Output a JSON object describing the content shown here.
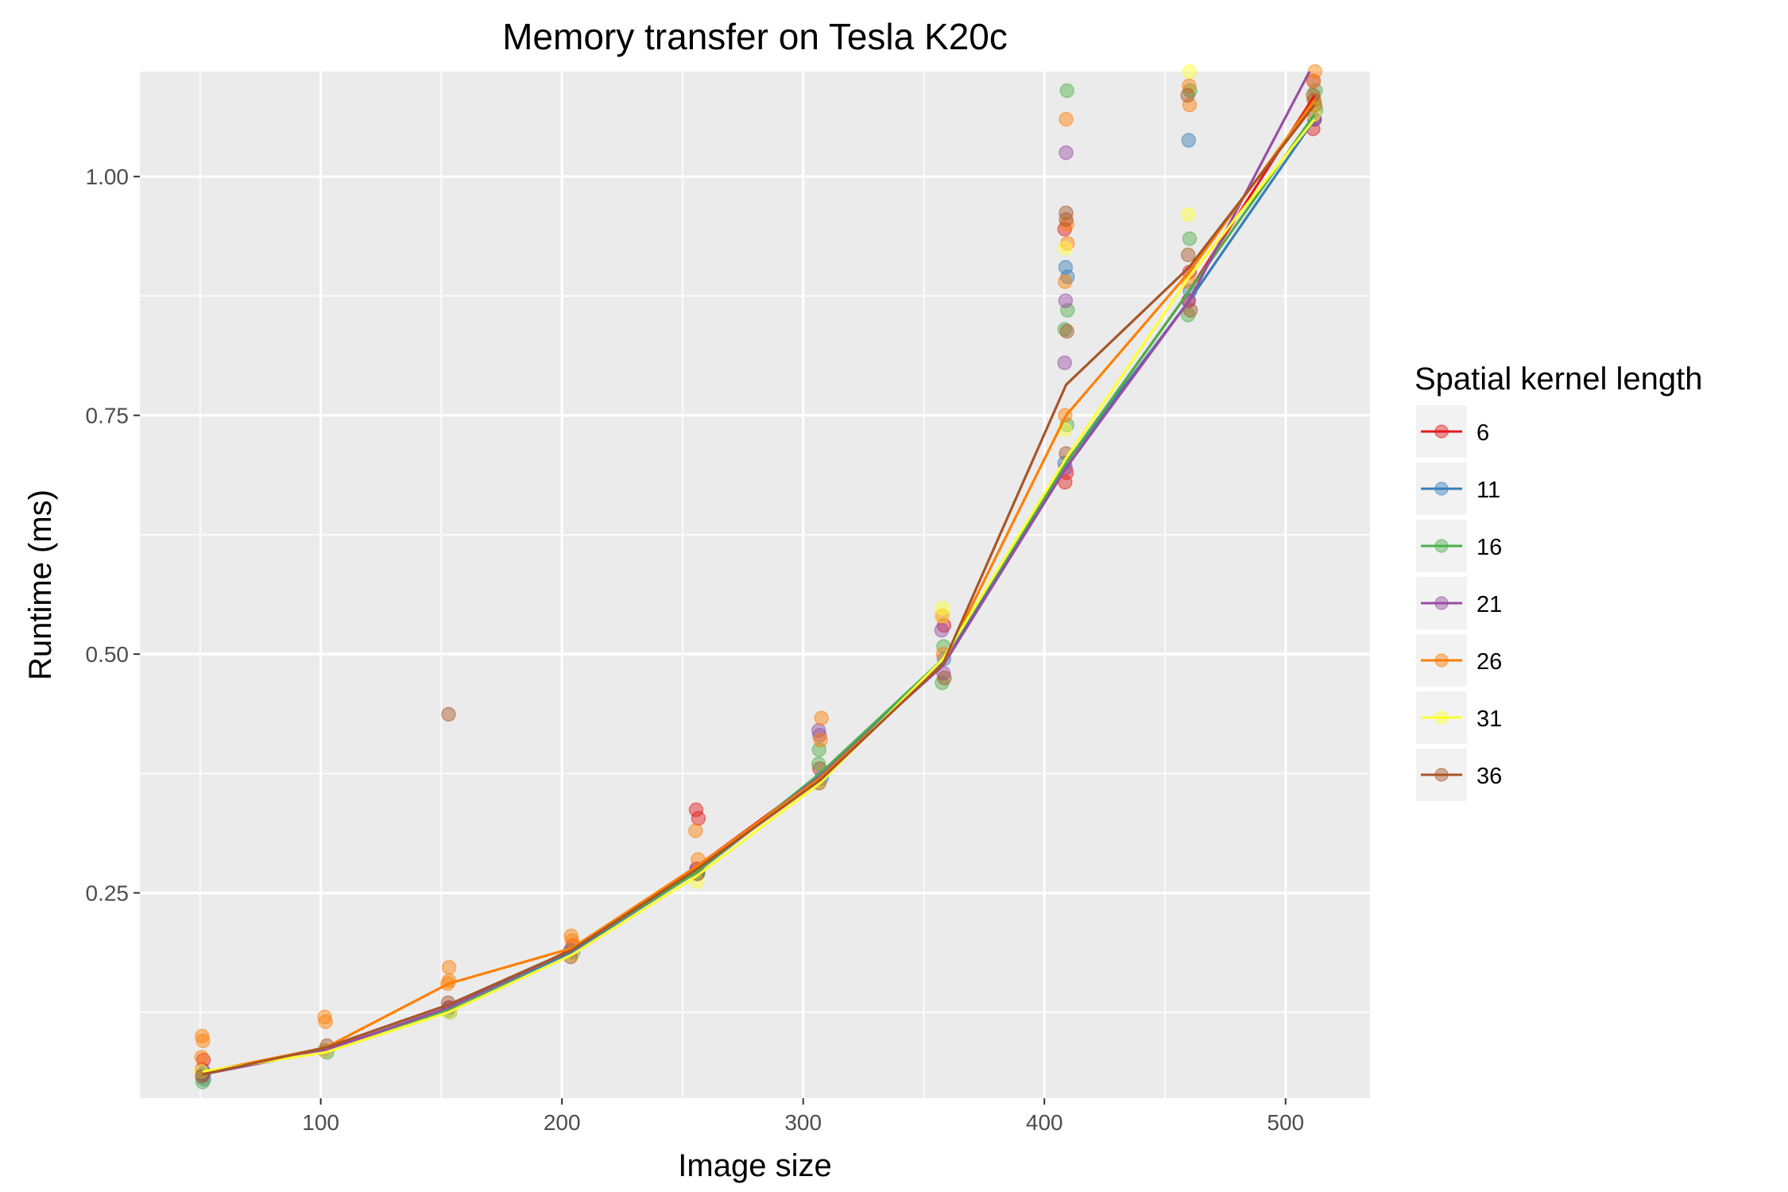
{
  "chart_data": {
    "type": "line",
    "title": "Memory transfer on Tesla K20c",
    "xlabel": "Image size",
    "ylabel": "Runtime (ms)",
    "xlim": [
      25,
      535
    ],
    "ylim": [
      0.035,
      1.11
    ],
    "xticks": [
      100,
      200,
      300,
      400,
      500
    ],
    "xtick_labels": [
      "100",
      "200",
      "300",
      "400",
      "500"
    ],
    "yticks": [
      0.25,
      0.5,
      0.75,
      1.0
    ],
    "ytick_labels": [
      "0.25",
      "0.50",
      "0.75",
      "1.00"
    ],
    "grid": true,
    "legend": {
      "title": "Spatial kernel length",
      "position": "right"
    },
    "x": [
      51,
      102,
      153,
      204,
      256,
      307,
      358,
      409,
      460,
      512
    ],
    "series": [
      {
        "name": "6",
        "color": "#e41a1c",
        "values": [
          0.062,
          0.086,
          0.128,
          0.191,
          0.278,
          0.372,
          0.49,
          0.7,
          0.88,
          1.085
        ],
        "points": [
          [
            51,
            0.065
          ],
          [
            51,
            0.075
          ],
          [
            102,
            0.085
          ],
          [
            153,
            0.13
          ],
          [
            204,
            0.195
          ],
          [
            256,
            0.337
          ],
          [
            256,
            0.328
          ],
          [
            256,
            0.275
          ],
          [
            307,
            0.38
          ],
          [
            358,
            0.54
          ],
          [
            358,
            0.53
          ],
          [
            409,
            0.68
          ],
          [
            409,
            0.69
          ],
          [
            409,
            0.945
          ],
          [
            460,
            0.87
          ],
          [
            460,
            0.9
          ],
          [
            512,
            1.05
          ],
          [
            512,
            1.06
          ]
        ]
      },
      {
        "name": "11",
        "color": "#377eb8",
        "values": [
          0.06,
          0.085,
          0.125,
          0.188,
          0.272,
          0.372,
          0.492,
          0.7,
          0.87,
          1.06
        ],
        "points": [
          [
            51,
            0.055
          ],
          [
            51,
            0.062
          ],
          [
            102,
            0.085
          ],
          [
            153,
            0.125
          ],
          [
            204,
            0.188
          ],
          [
            256,
            0.27
          ],
          [
            307,
            0.37
          ],
          [
            358,
            0.495
          ],
          [
            409,
            0.905
          ],
          [
            409,
            0.895
          ],
          [
            409,
            0.7
          ],
          [
            460,
            1.038
          ],
          [
            460,
            0.88
          ],
          [
            512,
            1.06
          ],
          [
            512,
            1.08
          ]
        ]
      },
      {
        "name": "16",
        "color": "#4daf4a",
        "values": [
          0.06,
          0.085,
          0.128,
          0.19,
          0.272,
          0.375,
          0.495,
          0.7,
          0.88,
          1.065
        ],
        "points": [
          [
            51,
            0.052
          ],
          [
            51,
            0.06
          ],
          [
            102,
            0.083
          ],
          [
            153,
            0.127
          ],
          [
            204,
            0.19
          ],
          [
            256,
            0.272
          ],
          [
            307,
            0.4
          ],
          [
            307,
            0.385
          ],
          [
            358,
            0.47
          ],
          [
            358,
            0.508
          ],
          [
            409,
            1.09
          ],
          [
            409,
            0.86
          ],
          [
            409,
            0.84
          ],
          [
            409,
            0.74
          ],
          [
            460,
            1.09
          ],
          [
            460,
            0.935
          ],
          [
            460,
            0.855
          ],
          [
            512,
            1.09
          ],
          [
            512,
            1.07
          ]
        ]
      },
      {
        "name": "21",
        "color": "#984ea3",
        "values": [
          0.06,
          0.085,
          0.13,
          0.19,
          0.275,
          0.372,
          0.488,
          0.695,
          0.87,
          1.12
        ],
        "points": [
          [
            51,
            0.06
          ],
          [
            102,
            0.085
          ],
          [
            153,
            0.13
          ],
          [
            204,
            0.19
          ],
          [
            256,
            0.275
          ],
          [
            307,
            0.42
          ],
          [
            307,
            0.415
          ],
          [
            358,
            0.525
          ],
          [
            358,
            0.48
          ],
          [
            409,
            1.025
          ],
          [
            409,
            0.87
          ],
          [
            409,
            0.805
          ],
          [
            409,
            0.695
          ],
          [
            460,
            0.87
          ],
          [
            512,
            1.1
          ],
          [
            512,
            1.06
          ]
        ]
      },
      {
        "name": "26",
        "color": "#ff7f00",
        "values": [
          0.062,
          0.088,
          0.155,
          0.192,
          0.278,
          0.37,
          0.49,
          0.75,
          0.9,
          1.08
        ],
        "points": [
          [
            51,
            0.1
          ],
          [
            51,
            0.095
          ],
          [
            51,
            0.078
          ],
          [
            102,
            0.12
          ],
          [
            102,
            0.115
          ],
          [
            153,
            0.172
          ],
          [
            153,
            0.158
          ],
          [
            153,
            0.155
          ],
          [
            204,
            0.205
          ],
          [
            204,
            0.2
          ],
          [
            256,
            0.315
          ],
          [
            256,
            0.285
          ],
          [
            307,
            0.433
          ],
          [
            307,
            0.41
          ],
          [
            358,
            0.5
          ],
          [
            409,
            1.06
          ],
          [
            409,
            0.95
          ],
          [
            409,
            0.93
          ],
          [
            409,
            0.89
          ],
          [
            409,
            0.75
          ],
          [
            460,
            1.095
          ],
          [
            460,
            1.075
          ],
          [
            460,
            0.89
          ],
          [
            512,
            1.11
          ],
          [
            512,
            1.1
          ],
          [
            512,
            1.08
          ]
        ]
      },
      {
        "name": "31",
        "color": "#ffff33",
        "values": [
          0.063,
          0.083,
          0.125,
          0.185,
          0.268,
          0.365,
          0.495,
          0.705,
          0.895,
          1.06
        ],
        "points": [
          [
            51,
            0.063
          ],
          [
            102,
            0.085
          ],
          [
            153,
            0.125
          ],
          [
            204,
            0.185
          ],
          [
            256,
            0.262
          ],
          [
            307,
            0.365
          ],
          [
            358,
            0.548
          ],
          [
            358,
            0.54
          ],
          [
            409,
            0.925
          ],
          [
            409,
            0.735
          ],
          [
            460,
            1.11
          ],
          [
            460,
            0.96
          ],
          [
            512,
            1.075
          ],
          [
            512,
            1.065
          ]
        ]
      },
      {
        "name": "36",
        "color": "#a65628",
        "values": [
          0.06,
          0.088,
          0.133,
          0.19,
          0.275,
          0.368,
          0.49,
          0.782,
          0.905,
          1.075
        ],
        "points": [
          [
            51,
            0.058
          ],
          [
            102,
            0.09
          ],
          [
            153,
            0.437
          ],
          [
            153,
            0.135
          ],
          [
            204,
            0.183
          ],
          [
            256,
            0.27
          ],
          [
            307,
            0.365
          ],
          [
            358,
            0.475
          ],
          [
            409,
            0.962
          ],
          [
            409,
            0.955
          ],
          [
            409,
            0.838
          ],
          [
            409,
            0.71
          ],
          [
            460,
            1.085
          ],
          [
            460,
            0.918
          ],
          [
            460,
            0.86
          ],
          [
            512,
            1.085
          ],
          [
            512,
            1.075
          ]
        ]
      }
    ]
  }
}
